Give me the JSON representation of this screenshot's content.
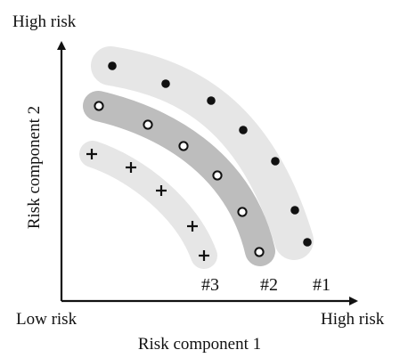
{
  "labels": {
    "y_top": "High risk",
    "x_left": "Low risk",
    "x_right": "High risk",
    "x_axis": "Risk component 1",
    "y_axis": "Risk component 2"
  },
  "groups": [
    {
      "id": "#1",
      "label": "#1",
      "marker": "filled-dot",
      "band_color": "#e6e6e6"
    },
    {
      "id": "#2",
      "label": "#2",
      "marker": "open-circle",
      "band_color": "#bdbdbd"
    },
    {
      "id": "#3",
      "label": "#3",
      "marker": "plus",
      "band_color": "#e6e6e6"
    }
  ]
}
